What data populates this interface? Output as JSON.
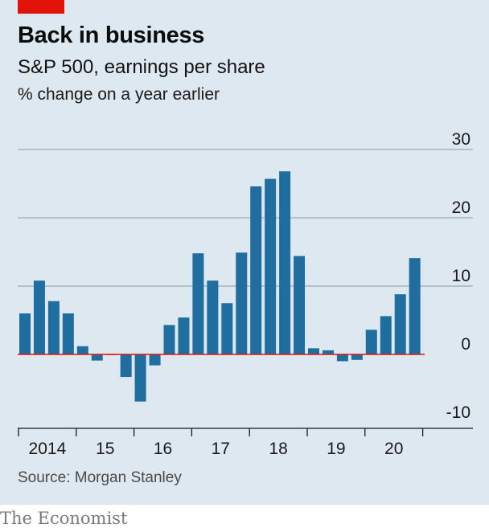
{
  "header": {
    "title": "Back in business",
    "subtitle": "S&P 500, earnings per share",
    "unit": "% change on a year earlier"
  },
  "footer": {
    "source": "Source: Morgan Stanley",
    "brand": "The Economist"
  },
  "colors": {
    "background": "#dde8f0",
    "bar": "#1f6e9f",
    "gridline": "#9aaab6",
    "zero_line": "#e3120b",
    "brand_red": "#e3120b"
  },
  "chart_data": {
    "type": "bar",
    "title": "Back in business",
    "subtitle": "S&P 500, earnings per share",
    "ylabel": "% change on a year earlier",
    "ylim": [
      -10,
      30
    ],
    "yticks": [
      -10,
      0,
      10,
      20,
      30
    ],
    "y_axis_side": "right",
    "grid": true,
    "year_labels": [
      "2014",
      "15",
      "16",
      "17",
      "18",
      "19",
      "20"
    ],
    "quarters_per_year": 4,
    "categories": [
      "2014 Q1",
      "2014 Q2",
      "2014 Q3",
      "2014 Q4",
      "2015 Q1",
      "2015 Q2",
      "2015 Q3",
      "2015 Q4",
      "2016 Q1",
      "2016 Q2",
      "2016 Q3",
      "2016 Q4",
      "2017 Q1",
      "2017 Q2",
      "2017 Q3",
      "2017 Q4",
      "2018 Q1",
      "2018 Q2",
      "2018 Q3",
      "2018 Q4",
      "2019 Q1",
      "2019 Q2",
      "2019 Q3",
      "2019 Q4",
      "2020 Q1",
      "2020 Q2",
      "2020 Q3",
      "2020 Q4"
    ],
    "values": [
      6.0,
      10.8,
      7.8,
      6.0,
      1.2,
      -0.9,
      -0.1,
      -3.3,
      -6.9,
      -1.6,
      4.3,
      5.4,
      14.8,
      10.8,
      7.5,
      14.9,
      24.6,
      25.7,
      26.8,
      14.4,
      0.9,
      0.6,
      -1.0,
      -0.8,
      3.6,
      5.6,
      8.8,
      14.1
    ]
  }
}
